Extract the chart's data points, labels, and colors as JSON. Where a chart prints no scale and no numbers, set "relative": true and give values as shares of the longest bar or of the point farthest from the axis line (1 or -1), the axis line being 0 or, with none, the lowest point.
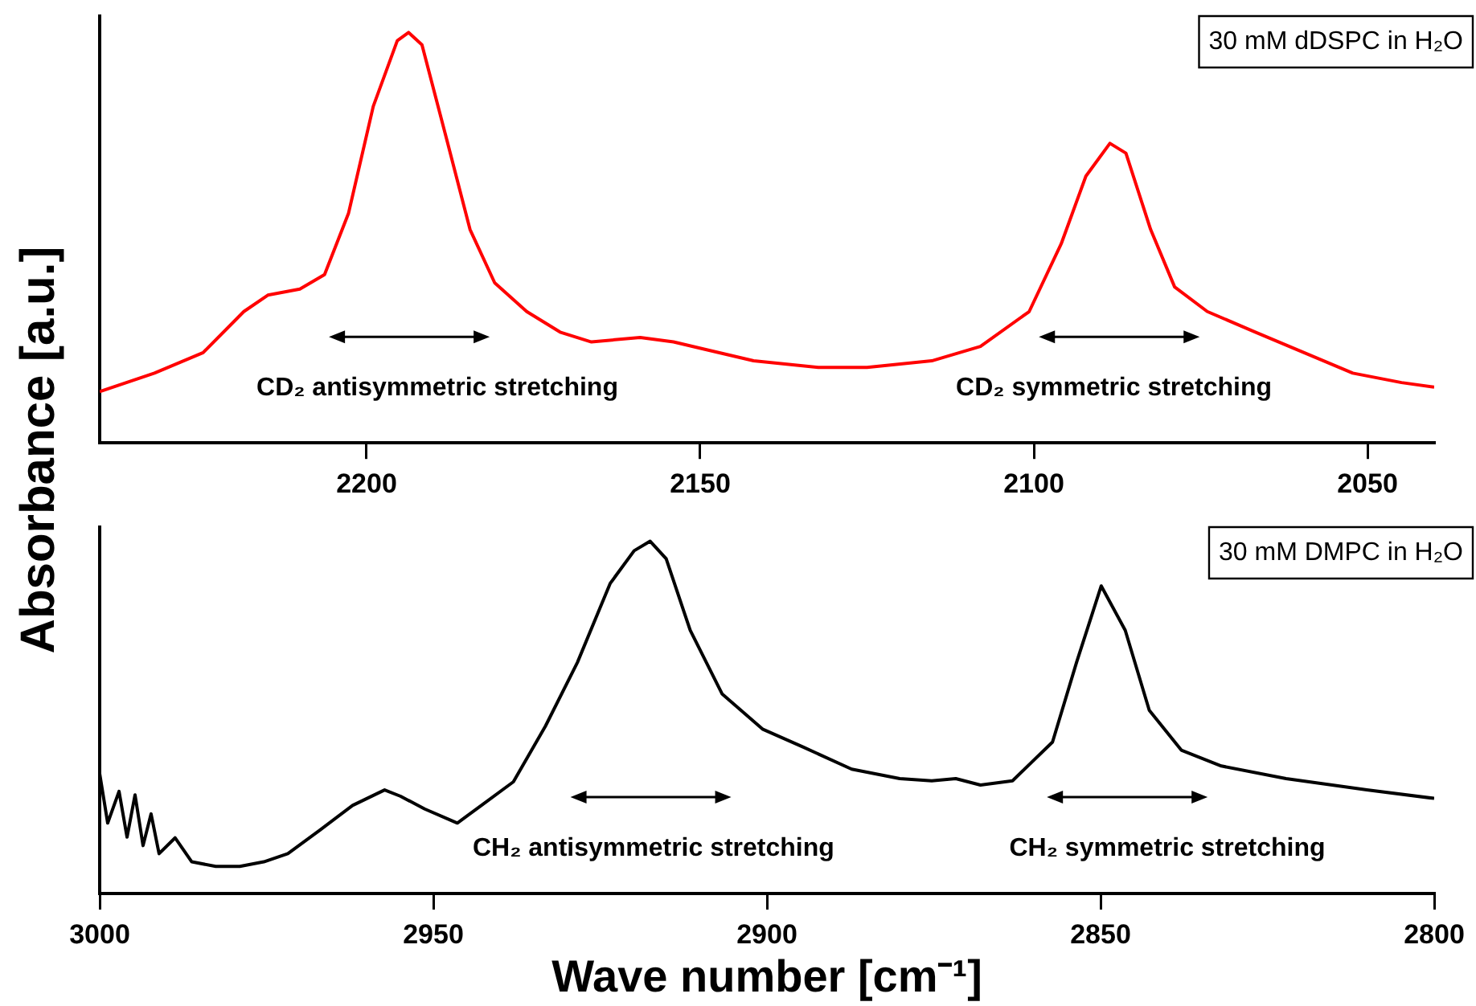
{
  "chart_data": [
    {
      "type": "line",
      "relative": true,
      "ylabel": "Absorbance [a.u.]",
      "xlim": [
        2240,
        2040
      ],
      "xticks": [
        2200,
        2150,
        2100,
        2050
      ],
      "legend": "top right",
      "marker": "none",
      "line_style": "solid",
      "grid": false,
      "annotations": [
        "CD₂ antisymmetric stretching",
        "CD₂ symmetric stretching"
      ],
      "series": [
        {
          "name": "30 mM dDSPC in H₂O",
          "color": "#ff0000",
          "x": [
            2240,
            2231.8,
            2224.5,
            2218.4,
            2214.8,
            2210,
            2206.3,
            2202.7,
            2199,
            2195.4,
            2193.7,
            2191.7,
            2188,
            2184.5,
            2180.8,
            2176,
            2171,
            2166.3,
            2159,
            2154,
            2149.3,
            2142,
            2132.3,
            2125,
            2115.3,
            2108,
            2100.7,
            2095.9,
            2092.2,
            2088.6,
            2086.2,
            2082.5,
            2078.9,
            2074,
            2066.8,
            2059.5,
            2052.2,
            2044.9,
            2040
          ],
          "values": [
            0.125,
            0.17,
            0.22,
            0.32,
            0.36,
            0.375,
            0.41,
            0.56,
            0.82,
            0.98,
            1,
            0.97,
            0.74,
            0.52,
            0.39,
            0.32,
            0.27,
            0.246,
            0.257,
            0.246,
            0.228,
            0.2,
            0.184,
            0.184,
            0.2,
            0.235,
            0.32,
            0.485,
            0.65,
            0.73,
            0.706,
            0.52,
            0.38,
            0.32,
            0.27,
            0.22,
            0.17,
            0.147,
            0.136
          ]
        }
      ]
    },
    {
      "type": "line",
      "relative": true,
      "xlabel": "Wave number [cm⁻¹]",
      "xlim": [
        3000,
        2800
      ],
      "xticks": [
        3000,
        2950,
        2900,
        2850,
        2800
      ],
      "legend": "top right",
      "marker": "none",
      "line_style": "solid",
      "grid": false,
      "annotations": [
        "CH₂ antisymmetric stretching",
        "CH₂ symmetric stretching"
      ],
      "series": [
        {
          "name": "30 mM DMPC in H₂O",
          "color": "#000000",
          "x": [
            3000,
            2998.8,
            2997.1,
            2995.9,
            2994.7,
            2993.5,
            2992.3,
            2991.1,
            2988.7,
            2986.2,
            2982.6,
            2979,
            2975.4,
            2971.8,
            2967,
            2962.1,
            2957.3,
            2954.9,
            2951.3,
            2946.4,
            2942.8,
            2938,
            2933.2,
            2928.4,
            2923.5,
            2919.9,
            2917.5,
            2915.1,
            2911.5,
            2906.7,
            2900.6,
            2894.6,
            2887.3,
            2880.1,
            2875.3,
            2871.7,
            2868,
            2863.2,
            2857.2,
            2853.6,
            2849.9,
            2846.3,
            2842.7,
            2837.9,
            2831.9,
            2822.2,
            2810.1,
            2800
          ],
          "values": [
            0.34,
            0.2,
            0.29,
            0.16,
            0.28,
            0.136,
            0.226,
            0.113,
            0.158,
            0.09,
            0.077,
            0.077,
            0.09,
            0.113,
            0.18,
            0.25,
            0.294,
            0.276,
            0.24,
            0.2,
            0.25,
            0.317,
            0.475,
            0.656,
            0.88,
            0.973,
            1,
            0.95,
            0.747,
            0.566,
            0.466,
            0.416,
            0.353,
            0.326,
            0.32,
            0.326,
            0.308,
            0.32,
            0.43,
            0.656,
            0.873,
            0.747,
            0.52,
            0.407,
            0.362,
            0.326,
            0.294,
            0.27
          ]
        }
      ]
    }
  ]
}
